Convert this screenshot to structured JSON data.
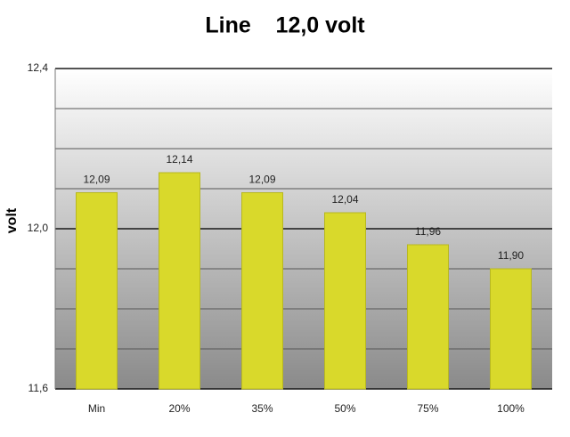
{
  "chart_data": {
    "type": "bar",
    "title": "Line    12,0 volt",
    "y_label": "volt",
    "categories": [
      "Min",
      "20%",
      "35%",
      "50%",
      "75%",
      "100%"
    ],
    "values": [
      12.09,
      12.14,
      12.09,
      12.04,
      11.96,
      11.9
    ],
    "value_labels": [
      "12,09",
      "12,14",
      "12,09",
      "12,04",
      "11,96",
      "11,90"
    ],
    "color": "#d9d92b",
    "ylim": [
      11.6,
      12.4
    ],
    "yticks": [
      {
        "value": 11.6,
        "label": "11,6"
      },
      {
        "value": 12.0,
        "label": "12,0"
      },
      {
        "value": 12.4,
        "label": "12,4"
      }
    ],
    "minor_yticks": [
      11.7,
      11.8,
      11.9,
      12.1,
      12.2,
      12.3
    ],
    "grid": true
  }
}
